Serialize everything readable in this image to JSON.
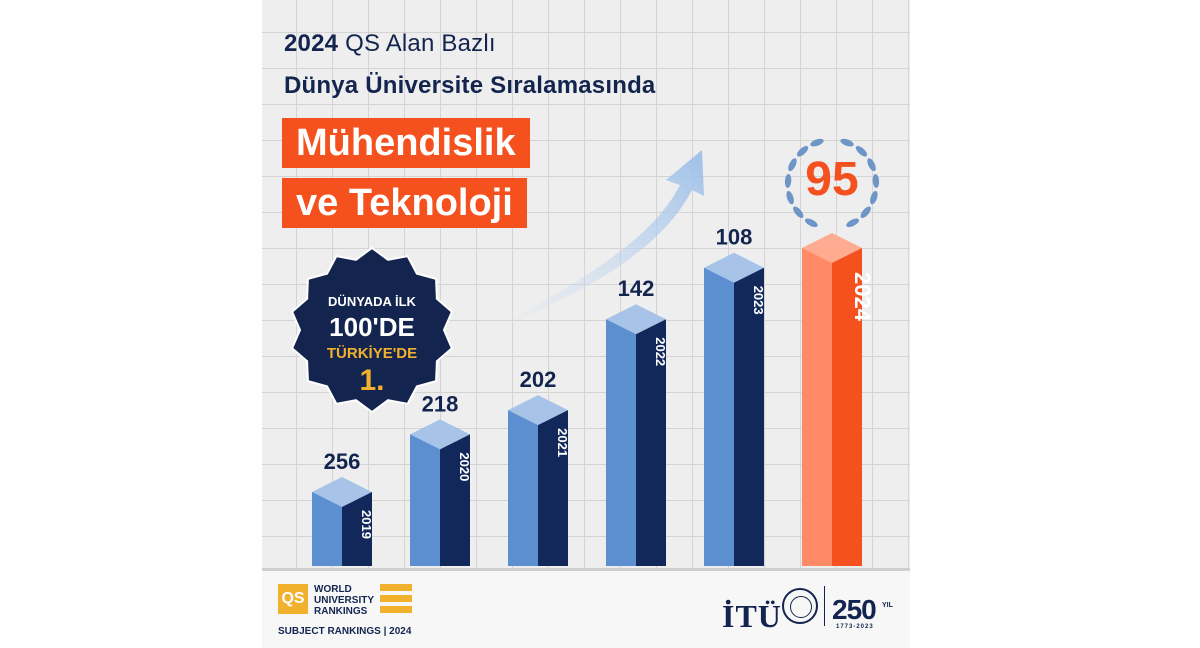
{
  "header": {
    "line1_year": "2024",
    "line1_rest": "QS Alan Bazlı",
    "line2": "Dünya Üniversite Sıralamasında",
    "subject_line1": "Mühendislik",
    "subject_line2": "ve Teknoloji"
  },
  "badge": {
    "line1": "DÜNYADA İLK",
    "line2": "100'DE",
    "line3": "TÜRKİYE'DE",
    "line4": "1."
  },
  "chart_data": {
    "type": "bar",
    "categories": [
      "2019",
      "2020",
      "2021",
      "2022",
      "2023",
      "2024"
    ],
    "values": [
      256,
      218,
      202,
      142,
      108,
      95
    ],
    "value_labels": [
      "256",
      "218",
      "202",
      "142",
      "108",
      "95"
    ],
    "highlight_category": "2024",
    "colors": {
      "bar_front": "#5b8fd0",
      "bar_side": "#12285a",
      "bar_top": "#a7c4e8",
      "highlight_front": "#ff8a65",
      "highlight_side": "#f4511e",
      "highlight_top": "#ffab91",
      "label": "#13254f",
      "laurel": "#6d95c6"
    }
  },
  "footer": {
    "qs_logo": "QS",
    "qs_line1": "WORLD",
    "qs_line2": "UNIVERSITY",
    "qs_line3": "RANKINGS",
    "qs_sub": "SUBJECT RANKINGS | 2024",
    "itu": "İTÜ",
    "anniversary": "250",
    "anniversary_unit": "YIL",
    "anniversary_dates": "1773-2023"
  }
}
